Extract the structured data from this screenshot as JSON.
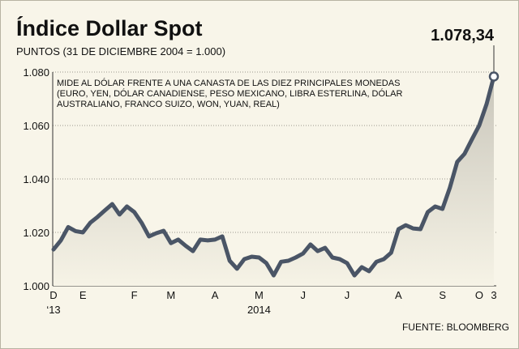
{
  "chart_data": {
    "type": "line",
    "title": "Índice Dollar Spot",
    "subtitle": "PUNTOS (31 DE DICIEMBRE 2004 = 1.000)",
    "note": [
      "MIDE AL DÓLAR FRENTE A UNA CANASTA DE LAS DIEZ PRINCIPALES MONEDAS",
      "(EURO, YEN, DÓLAR CANADIENSE, PESO MEXICANO, LIBRA ESTERLINA, DÓLAR",
      "AUSTRALIANO, FRANCO SUIZO, WON, YUAN, REAL)"
    ],
    "source": "FUENTE: BLOOMBERG",
    "categories": [
      "D",
      null,
      null,
      null,
      "E",
      null,
      null,
      null,
      null,
      null,
      null,
      "F",
      null,
      null,
      null,
      null,
      "M",
      null,
      null,
      null,
      null,
      null,
      "A",
      null,
      null,
      null,
      null,
      null,
      "M",
      null,
      null,
      null,
      null,
      null,
      "J",
      null,
      null,
      null,
      null,
      null,
      "J",
      null,
      null,
      null,
      null,
      null,
      null,
      "A",
      null,
      null,
      null,
      null,
      null,
      "S",
      null,
      null,
      null,
      null,
      "O",
      null,
      "3"
    ],
    "x_sublabels": [
      "‘13",
      null,
      null,
      null,
      null,
      null,
      null,
      null,
      null,
      null,
      null,
      null,
      null,
      null,
      null,
      null,
      null,
      null,
      null,
      null,
      null,
      null,
      null,
      null,
      null,
      null,
      null,
      null,
      "2014",
      null,
      null,
      null,
      null,
      null,
      null,
      null,
      null,
      null,
      null,
      null,
      null,
      null,
      null,
      null,
      null,
      null,
      null,
      null,
      null,
      null,
      null,
      null,
      null,
      null,
      null,
      null,
      null,
      null,
      null,
      null,
      null
    ],
    "series": [
      {
        "name": "Índice Dollar Spot",
        "color": "#4a5566",
        "values": [
          1013.6,
          1017,
          1022,
          1020.5,
          1020,
          1023.6,
          1025.8,
          1028.2,
          1030.6,
          1026.7,
          1029.7,
          1027.6,
          1023.6,
          1018.5,
          1019.7,
          1020.6,
          1016,
          1017.3,
          1015,
          1013,
          1017.3,
          1017,
          1017.3,
          1018.5,
          1009.4,
          1006.4,
          1010,
          1010.9,
          1010.6,
          1008.5,
          1003.9,
          1009,
          1009.4,
          1010.6,
          1012.1,
          1015.5,
          1013,
          1014.2,
          1010.6,
          1010,
          1008.5,
          1003.9,
          1007,
          1005.5,
          1009,
          1010,
          1012.4,
          1021.2,
          1022.7,
          1021.5,
          1021.2,
          1027.6,
          1029.7,
          1028.8,
          1036.7,
          1046.4,
          1049.4,
          1054.8,
          1060,
          1068,
          1078.34
        ],
        "value_labels": [
          null,
          null,
          null,
          null,
          null,
          null,
          null,
          null,
          null,
          null,
          null,
          null,
          null,
          null,
          null,
          null,
          null,
          null,
          null,
          null,
          null,
          null,
          null,
          null,
          null,
          null,
          null,
          null,
          null,
          null,
          null,
          null,
          null,
          null,
          null,
          null,
          null,
          null,
          null,
          null,
          null,
          null,
          null,
          null,
          null,
          null,
          null,
          null,
          null,
          null,
          null,
          null,
          null,
          null,
          null,
          null,
          null,
          null,
          null,
          null,
          "1.078,34"
        ]
      }
    ],
    "ylim": [
      1000,
      1080
    ],
    "yticks": [
      {
        "value": 1000,
        "label": "1.000"
      },
      {
        "value": 1020,
        "label": "1.020"
      },
      {
        "value": 1040,
        "label": "1.040"
      },
      {
        "value": 1060,
        "label": "1.060"
      },
      {
        "value": 1080,
        "label": "1.080"
      }
    ],
    "grid": true
  }
}
